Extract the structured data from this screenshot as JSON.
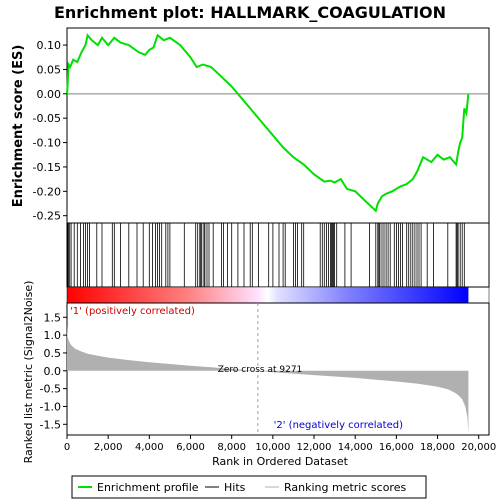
{
  "title": "Enrichment plot: HALLMARK_COAGULATION",
  "colors": {
    "es_line": "#00e000",
    "hits": "#000000",
    "metric": "#b0b0b0",
    "pos_band": "#ff0000",
    "neg_band": "#0000ff",
    "zero_line": "#808080",
    "pos_label": "#cc0000",
    "neg_label": "#0000cc"
  },
  "top_panel": {
    "ylabel": "Enrichment score (ES)",
    "yticks": [
      "0.10",
      "0.05",
      "0.00",
      "-0.05",
      "-0.10",
      "-0.15",
      "-0.20",
      "-0.25"
    ]
  },
  "bottom_panel": {
    "ylabel": "Ranked list metric (Signal2Noise)",
    "xlabel": "Rank in Ordered Dataset",
    "yticks": [
      "1.5",
      "1.0",
      "0.5",
      "0.0",
      "-0.5",
      "-1.0",
      "-1.5"
    ],
    "xticks": [
      "0",
      "2,000",
      "4,000",
      "6,000",
      "8,000",
      "10,000",
      "12,000",
      "14,000",
      "16,000",
      "18,000",
      "20,000"
    ],
    "pos_label": "'1' (positively correlated)",
    "neg_label": "'2' (negatively correlated)",
    "zero_cross_label": "Zero cross at 9271"
  },
  "legend": {
    "enrichment": "Enrichment profile",
    "hits": "Hits",
    "ranking": "Ranking metric scores"
  },
  "chart_data": {
    "type": "line",
    "n_genes": 19500,
    "zero_cross": 9271,
    "es_ylim": [
      -0.265,
      0.135
    ],
    "metric_ylim": [
      -1.8,
      1.9
    ],
    "xlim": [
      0,
      20500
    ],
    "es_curve": {
      "x": [
        0,
        80,
        150,
        300,
        500,
        700,
        900,
        1000,
        1200,
        1500,
        1700,
        2000,
        2300,
        2600,
        3000,
        3500,
        3800,
        4000,
        4200,
        4400,
        4700,
        5000,
        5500,
        6000,
        6300,
        6600,
        7000,
        7500,
        8000,
        8500,
        9000,
        9500,
        10000,
        10500,
        11000,
        11500,
        12000,
        12500,
        12800,
        13000,
        13300,
        13600,
        14000,
        14500,
        15000,
        15100,
        15300,
        15500,
        15800,
        16000,
        16200,
        16500,
        16800,
        17000,
        17300,
        17700,
        18000,
        18300,
        18600,
        18900,
        19000,
        19100,
        19200,
        19300,
        19400,
        19500
      ],
      "y": [
        -0.005,
        0.06,
        0.055,
        0.07,
        0.065,
        0.085,
        0.1,
        0.12,
        0.11,
        0.1,
        0.115,
        0.1,
        0.115,
        0.105,
        0.1,
        0.085,
        0.08,
        0.09,
        0.095,
        0.12,
        0.11,
        0.115,
        0.1,
        0.075,
        0.055,
        0.06,
        0.055,
        0.035,
        0.015,
        -0.01,
        -0.035,
        -0.06,
        -0.085,
        -0.11,
        -0.13,
        -0.145,
        -0.165,
        -0.18,
        -0.178,
        -0.182,
        -0.175,
        -0.195,
        -0.2,
        -0.22,
        -0.24,
        -0.225,
        -0.21,
        -0.205,
        -0.2,
        -0.195,
        -0.19,
        -0.185,
        -0.175,
        -0.16,
        -0.13,
        -0.14,
        -0.125,
        -0.135,
        -0.13,
        -0.145,
        -0.12,
        -0.1,
        -0.09,
        -0.03,
        -0.04,
        0.0
      ]
    },
    "hits": [
      30,
      80,
      130,
      200,
      350,
      500,
      650,
      800,
      900,
      1000,
      1100,
      1450,
      1700,
      2200,
      2300,
      2600,
      3000,
      3400,
      3700,
      4000,
      4150,
      4300,
      4400,
      4500,
      4600,
      4800,
      4900,
      5000,
      5700,
      6250,
      6350,
      6450,
      6500,
      6550,
      6650,
      6700,
      6800,
      6900,
      7100,
      7500,
      7600,
      7800,
      8000,
      8300,
      8600,
      8900,
      9000,
      9300,
      9800,
      10000,
      10300,
      10500,
      10600,
      11000,
      11100,
      11200,
      11400,
      11500,
      12300,
      12400,
      12500,
      12600,
      12700,
      12800,
      12850,
      12900,
      12950,
      13000,
      13100,
      13500,
      13800,
      14700,
      15000,
      15100,
      15150,
      15200,
      15300,
      15400,
      15500,
      15600,
      15700,
      15900,
      16000,
      16100,
      16200,
      16300,
      16500,
      16600,
      16700,
      16800,
      16900,
      17000,
      17100,
      17200,
      17500,
      17800,
      18500,
      18900,
      18950,
      19000,
      19100,
      19200,
      19300
    ],
    "metric_curve": {
      "x": [
        0,
        30,
        100,
        200,
        400,
        700,
        1000,
        1500,
        2000,
        3000,
        4000,
        5000,
        6000,
        7000,
        8000,
        9271,
        10000,
        11000,
        12000,
        13000,
        14000,
        15000,
        16000,
        17000,
        17500,
        18000,
        18500,
        18800,
        19000,
        19200,
        19350,
        19450,
        19500
      ],
      "y": [
        1.3,
        0.95,
        0.82,
        0.72,
        0.62,
        0.54,
        0.48,
        0.42,
        0.37,
        0.3,
        0.24,
        0.19,
        0.14,
        0.1,
        0.05,
        0.0,
        -0.04,
        -0.08,
        -0.12,
        -0.16,
        -0.2,
        -0.25,
        -0.3,
        -0.36,
        -0.4,
        -0.45,
        -0.52,
        -0.6,
        -0.68,
        -0.8,
        -1.0,
        -1.3,
        -1.75
      ]
    }
  }
}
